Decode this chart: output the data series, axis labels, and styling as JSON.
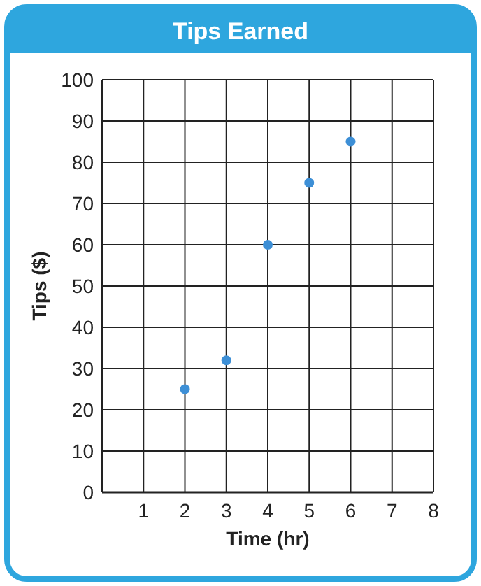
{
  "chart_data": {
    "type": "scatter",
    "title": "Tips Earned",
    "xlabel": "Time (hr)",
    "ylabel": "Tips ($)",
    "x": [
      2,
      3,
      4,
      5,
      6
    ],
    "series": [
      {
        "color": "#3d8fd6",
        "values": [
          25,
          32,
          60,
          75,
          85
        ]
      }
    ],
    "xlim": [
      0,
      8
    ],
    "xticks": [
      1,
      2,
      3,
      4,
      5,
      6,
      7,
      8
    ],
    "ylim": [
      0,
      100
    ],
    "yticks": [
      0,
      10,
      20,
      30,
      40,
      50,
      60,
      70,
      80,
      90,
      100
    ],
    "grid": true,
    "marker": "circle"
  }
}
